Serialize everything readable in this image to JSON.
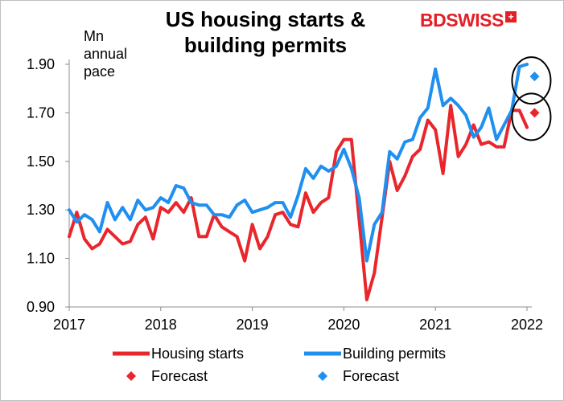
{
  "chart_data": {
    "type": "line",
    "title": "US housing starts & building permits",
    "ylabel": "Mn annual pace",
    "ylim": [
      0.9,
      1.9
    ],
    "yticks": [
      "0.90",
      "1.10",
      "1.30",
      "1.50",
      "1.70",
      "1.90"
    ],
    "xlim": [
      2017.0,
      2022.0
    ],
    "xticks": [
      "2017",
      "2018",
      "2019",
      "2020",
      "2021",
      "2022"
    ],
    "grid": false,
    "legend_position": "bottom",
    "series": [
      {
        "name": "Housing starts",
        "color": "#e8262c",
        "style": "line",
        "x": [
          2017.0,
          2017.083,
          2017.167,
          2017.25,
          2017.333,
          2017.417,
          2017.5,
          2017.583,
          2017.667,
          2017.75,
          2017.833,
          2017.917,
          2018.0,
          2018.083,
          2018.167,
          2018.25,
          2018.333,
          2018.417,
          2018.5,
          2018.583,
          2018.667,
          2018.75,
          2018.833,
          2018.917,
          2019.0,
          2019.083,
          2019.167,
          2019.25,
          2019.333,
          2019.417,
          2019.5,
          2019.583,
          2019.667,
          2019.75,
          2019.833,
          2019.917,
          2020.0,
          2020.083,
          2020.167,
          2020.25,
          2020.333,
          2020.417,
          2020.5,
          2020.583,
          2020.667,
          2020.75,
          2020.833,
          2020.917,
          2021.0,
          2021.083,
          2021.167,
          2021.25,
          2021.333,
          2021.417,
          2021.5,
          2021.583,
          2021.667,
          2021.75,
          2021.833,
          2021.917,
          2022.0
        ],
        "y": [
          1.19,
          1.29,
          1.18,
          1.14,
          1.16,
          1.22,
          1.19,
          1.16,
          1.17,
          1.24,
          1.27,
          1.18,
          1.31,
          1.29,
          1.33,
          1.29,
          1.35,
          1.19,
          1.19,
          1.28,
          1.23,
          1.21,
          1.19,
          1.09,
          1.24,
          1.14,
          1.19,
          1.28,
          1.29,
          1.24,
          1.23,
          1.37,
          1.29,
          1.33,
          1.35,
          1.54,
          1.59,
          1.59,
          1.26,
          0.93,
          1.04,
          1.27,
          1.5,
          1.38,
          1.44,
          1.52,
          1.55,
          1.67,
          1.63,
          1.45,
          1.73,
          1.52,
          1.57,
          1.65,
          1.57,
          1.58,
          1.56,
          1.56,
          1.71,
          1.71,
          1.64
        ]
      },
      {
        "name": "Building permits",
        "color": "#1f8ff0",
        "style": "line",
        "x": [
          2017.0,
          2017.083,
          2017.167,
          2017.25,
          2017.333,
          2017.417,
          2017.5,
          2017.583,
          2017.667,
          2017.75,
          2017.833,
          2017.917,
          2018.0,
          2018.083,
          2018.167,
          2018.25,
          2018.333,
          2018.417,
          2018.5,
          2018.583,
          2018.667,
          2018.75,
          2018.833,
          2018.917,
          2019.0,
          2019.083,
          2019.167,
          2019.25,
          2019.333,
          2019.417,
          2019.5,
          2019.583,
          2019.667,
          2019.75,
          2019.833,
          2019.917,
          2020.0,
          2020.083,
          2020.167,
          2020.25,
          2020.333,
          2020.417,
          2020.5,
          2020.583,
          2020.667,
          2020.75,
          2020.833,
          2020.917,
          2021.0,
          2021.083,
          2021.167,
          2021.25,
          2021.333,
          2021.417,
          2021.5,
          2021.583,
          2021.667,
          2021.75,
          2021.833,
          2021.917,
          2022.0
        ],
        "y": [
          1.3,
          1.25,
          1.28,
          1.26,
          1.21,
          1.33,
          1.26,
          1.31,
          1.26,
          1.34,
          1.3,
          1.31,
          1.35,
          1.33,
          1.4,
          1.39,
          1.33,
          1.32,
          1.32,
          1.28,
          1.28,
          1.27,
          1.32,
          1.34,
          1.29,
          1.3,
          1.31,
          1.33,
          1.33,
          1.27,
          1.36,
          1.47,
          1.43,
          1.48,
          1.46,
          1.48,
          1.55,
          1.47,
          1.35,
          1.09,
          1.24,
          1.29,
          1.54,
          1.51,
          1.58,
          1.59,
          1.68,
          1.72,
          1.88,
          1.73,
          1.76,
          1.73,
          1.69,
          1.6,
          1.64,
          1.72,
          1.59,
          1.65,
          1.71,
          1.89,
          1.9
        ]
      },
      {
        "name": "Forecast",
        "color": "#e8262c",
        "style": "marker",
        "x": [
          2022.083
        ],
        "y": [
          1.7
        ]
      },
      {
        "name": "Forecast",
        "color": "#1f8ff0",
        "style": "marker",
        "x": [
          2022.083
        ],
        "y": [
          1.85
        ]
      }
    ]
  },
  "brand": {
    "name": "BDSWISS",
    "mark": "+"
  },
  "legend": {
    "items": [
      {
        "label": "Housing starts",
        "color": "#e8262c",
        "kind": "line"
      },
      {
        "label": "Building permits",
        "color": "#1f8ff0",
        "kind": "line"
      },
      {
        "label": "Forecast",
        "color": "#e8262c",
        "kind": "diamond"
      },
      {
        "label": "Forecast",
        "color": "#1f8ff0",
        "kind": "diamond"
      }
    ]
  }
}
